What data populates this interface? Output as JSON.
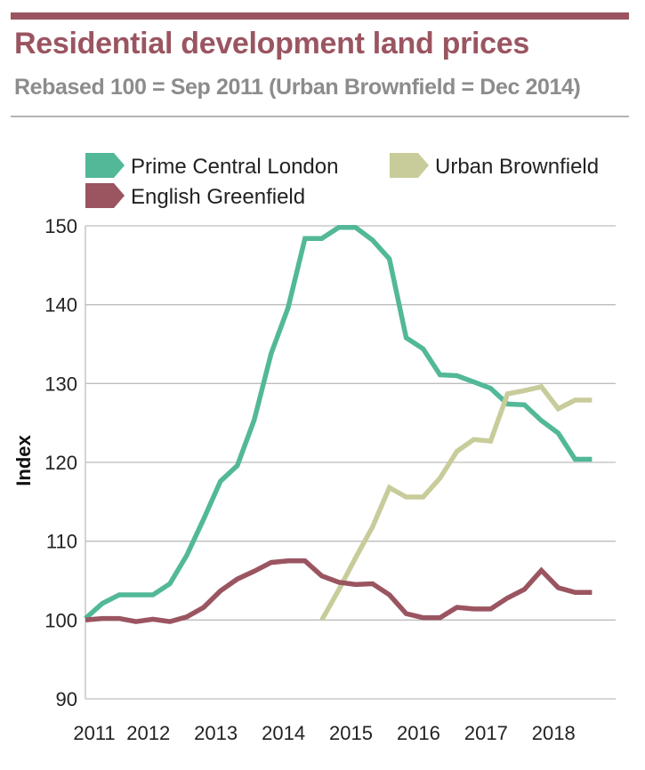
{
  "chart_data": {
    "type": "line",
    "title": "Residential development land prices",
    "subtitle": "Rebased 100 = Sep 2011 (Urban Brownfield = Dec 2014)",
    "xlabel": "",
    "ylabel": "Index",
    "xlim": [
      2011.0,
      2018.85
    ],
    "ylim": [
      90,
      150
    ],
    "y_ticks": [
      90,
      100,
      110,
      120,
      130,
      140,
      150
    ],
    "x_ticks": [
      {
        "label": "2011",
        "value": 2011.0
      },
      {
        "label": "2012",
        "value": 2011.8
      },
      {
        "label": "2013",
        "value": 2012.8
      },
      {
        "label": "2014",
        "value": 2013.8
      },
      {
        "label": "2015",
        "value": 2014.8
      },
      {
        "label": "2016",
        "value": 2015.8
      },
      {
        "label": "2017",
        "value": 2016.8
      },
      {
        "label": "2018",
        "value": 2017.8
      }
    ],
    "grid": "horizontal",
    "legend_position": "top",
    "series": [
      {
        "name": "Prime Central London",
        "color": "#52b898",
        "x": [
          2011.0,
          2011.25,
          2011.5,
          2011.75,
          2012.0,
          2012.25,
          2012.5,
          2012.75,
          2013.0,
          2013.25,
          2013.5,
          2013.75,
          2014.0,
          2014.25,
          2014.5,
          2014.75,
          2015.0,
          2015.25,
          2015.5,
          2015.75,
          2016.0,
          2016.25,
          2016.5,
          2016.75,
          2017.0,
          2017.25,
          2017.5,
          2017.75,
          2018.0,
          2018.25,
          2018.5
        ],
        "values": [
          100.2,
          102.1,
          103.2,
          103.2,
          103.2,
          104.6,
          108.2,
          112.8,
          117.6,
          119.6,
          125.4,
          133.8,
          139.6,
          148.4,
          148.4,
          149.8,
          149.8,
          148.2,
          145.8,
          135.8,
          134.4,
          131.1,
          131.0,
          130.2,
          129.4,
          127.4,
          127.3,
          125.3,
          123.7,
          120.4,
          120.4
        ]
      },
      {
        "name": "Urban Brownfield",
        "color": "#c8cc9a",
        "x": [
          2014.5,
          2014.75,
          2015.0,
          2015.25,
          2015.5,
          2015.75,
          2016.0,
          2016.25,
          2016.5,
          2016.75,
          2017.0,
          2017.25,
          2017.5,
          2017.75,
          2018.0,
          2018.25,
          2018.5
        ],
        "values": [
          100.0,
          103.8,
          107.9,
          111.8,
          116.8,
          115.6,
          115.6,
          118.0,
          121.4,
          122.9,
          122.7,
          128.7,
          129.1,
          129.6,
          126.8,
          127.9,
          127.9
        ]
      },
      {
        "name": "English Greenfield",
        "color": "#9a5561",
        "x": [
          2011.0,
          2011.25,
          2011.5,
          2011.75,
          2012.0,
          2012.25,
          2012.5,
          2012.75,
          2013.0,
          2013.25,
          2013.5,
          2013.75,
          2014.0,
          2014.25,
          2014.5,
          2014.75,
          2015.0,
          2015.25,
          2015.5,
          2015.75,
          2016.0,
          2016.25,
          2016.5,
          2016.75,
          2017.0,
          2017.25,
          2017.5,
          2017.75,
          2018.0,
          2018.25,
          2018.5
        ],
        "values": [
          100.0,
          100.2,
          100.2,
          99.8,
          100.1,
          99.8,
          100.4,
          101.6,
          103.7,
          105.2,
          106.2,
          107.3,
          107.5,
          107.5,
          105.6,
          104.8,
          104.5,
          104.6,
          103.2,
          100.8,
          100.3,
          100.3,
          101.6,
          101.4,
          101.4,
          102.8,
          103.9,
          106.3,
          104.1,
          103.5,
          103.5
        ]
      }
    ]
  },
  "legend": [
    {
      "label": "Prime Central London",
      "color": "#52b898"
    },
    {
      "label": "Urban Brownfield",
      "color": "#c8cc9a"
    },
    {
      "label": "English Greenfield",
      "color": "#9a5561"
    }
  ]
}
